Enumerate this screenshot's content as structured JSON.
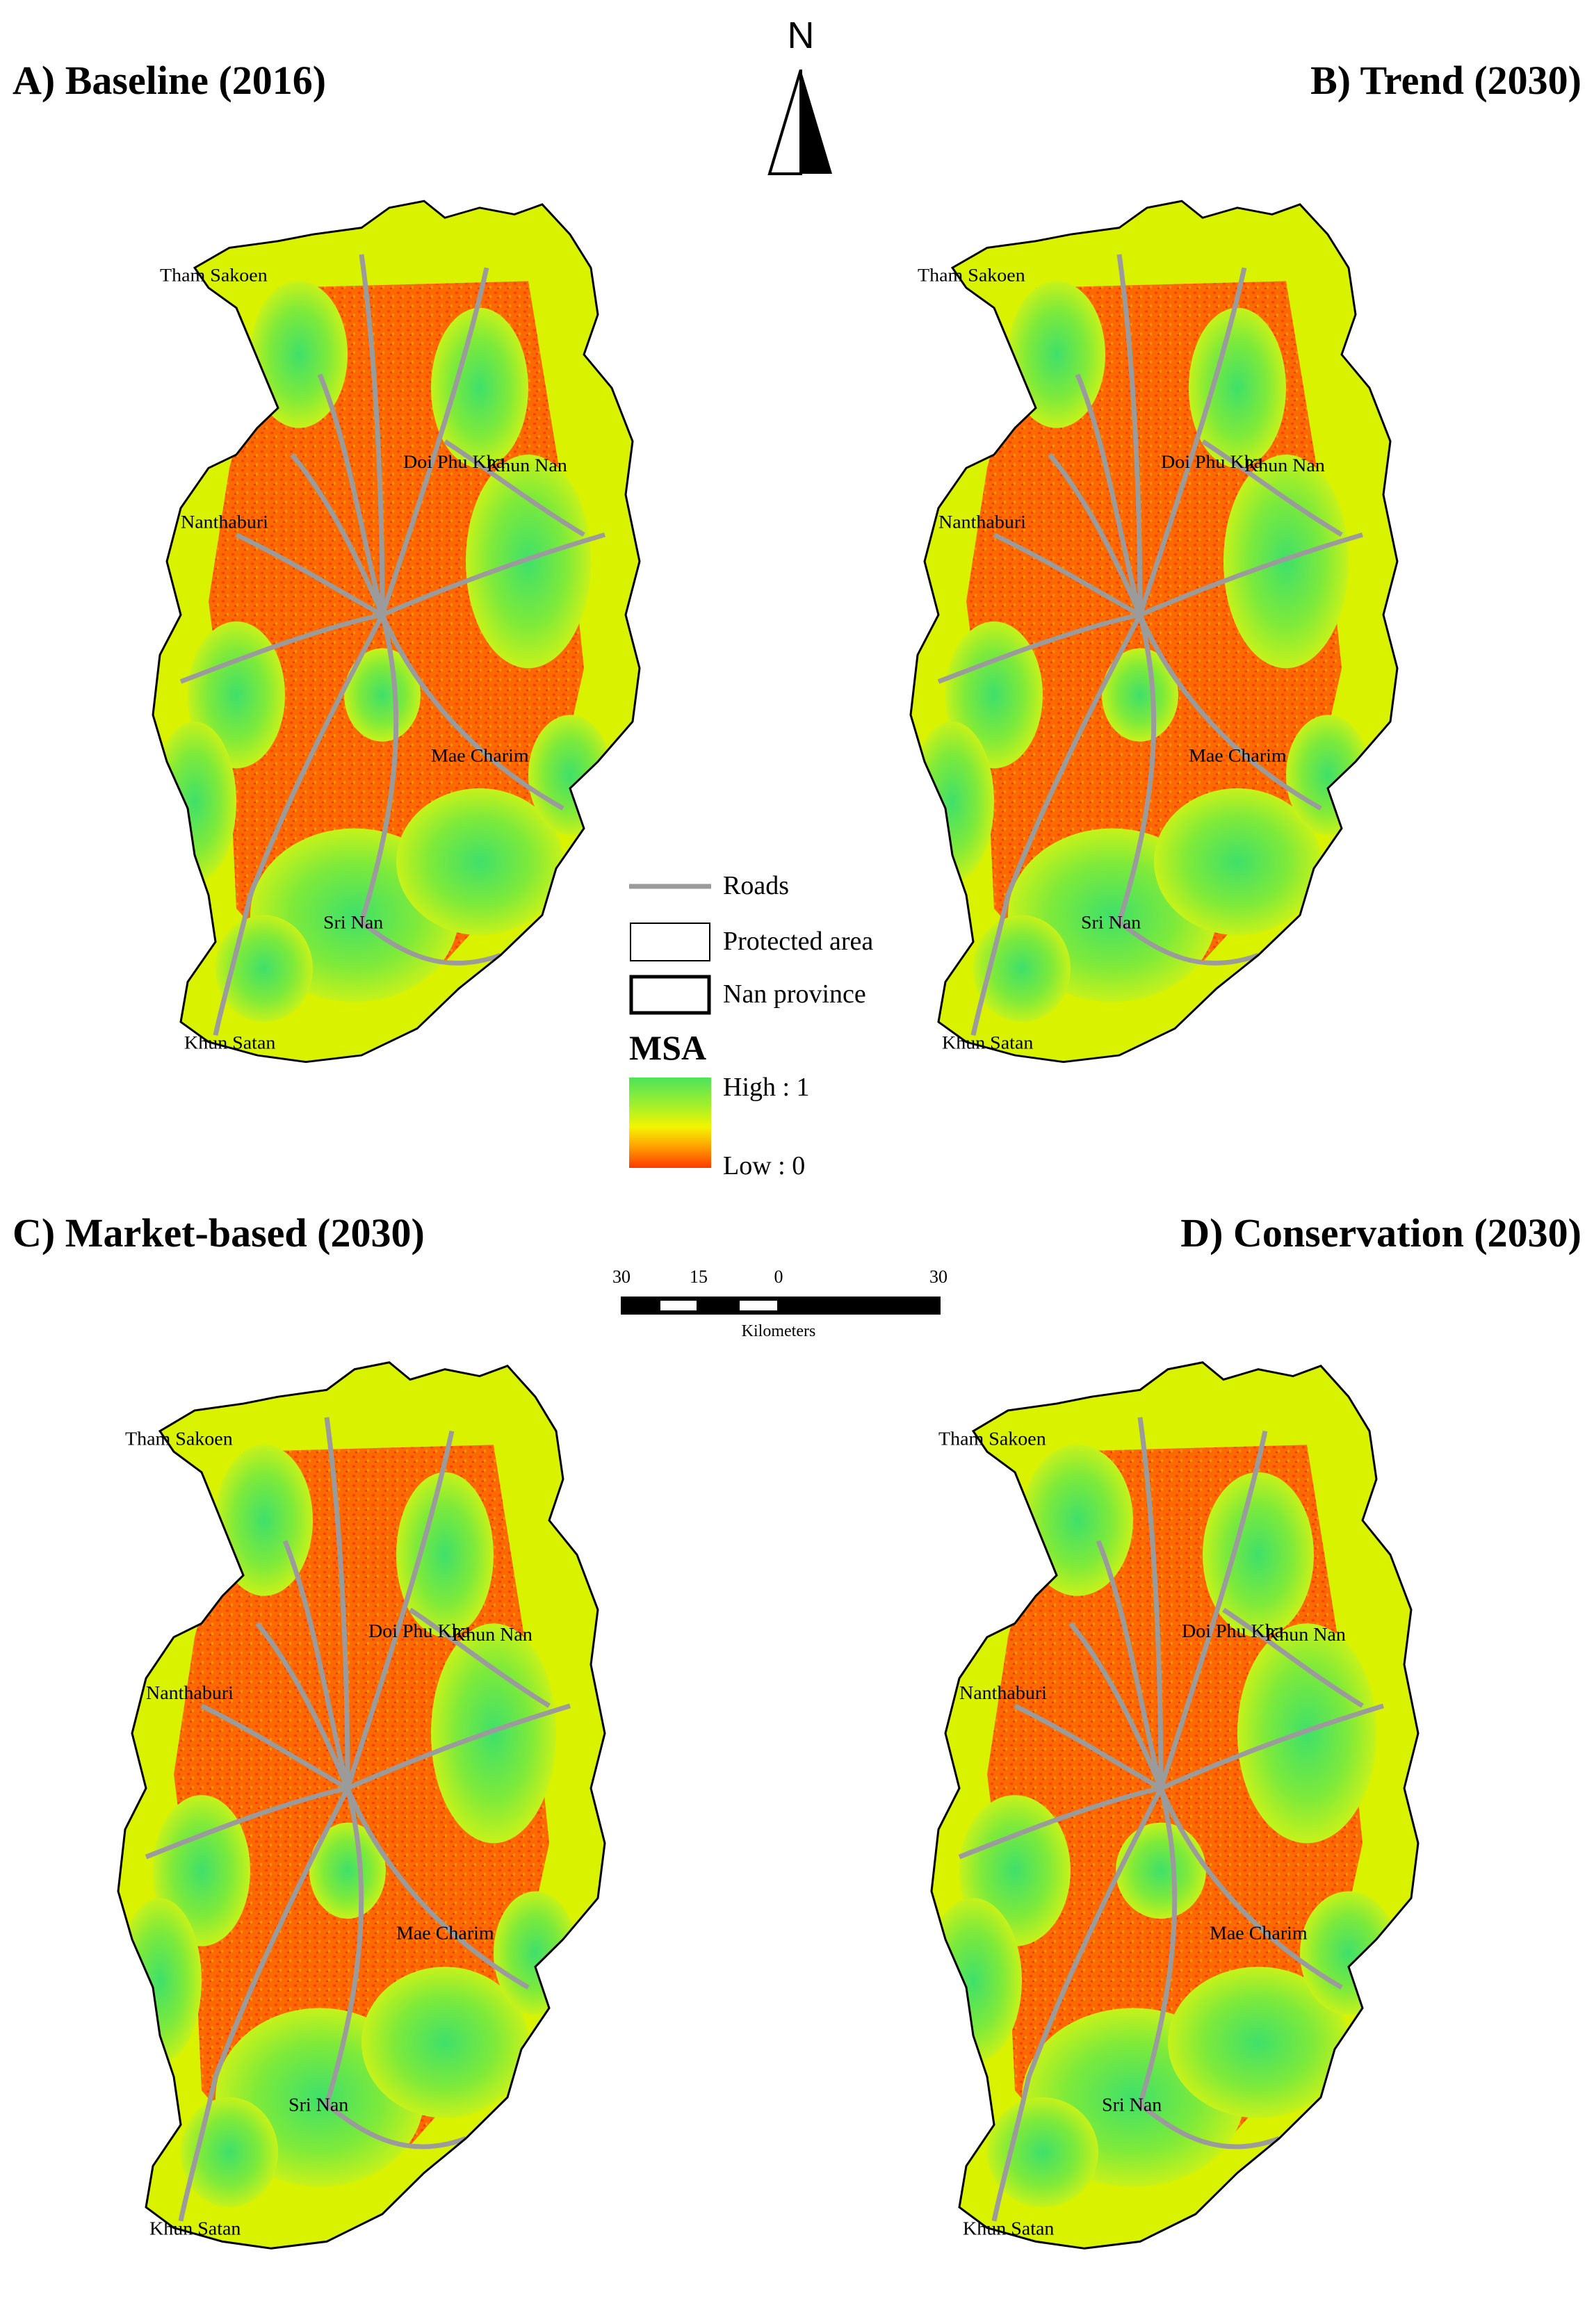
{
  "panels": [
    {
      "id": "a",
      "title": "A) Baseline (2016)"
    },
    {
      "id": "b",
      "title": "B) Trend (2030)"
    },
    {
      "id": "c",
      "title": "C) Market-based (2030)"
    },
    {
      "id": "d",
      "title": "D) Conservation (2030)"
    }
  ],
  "north_arrow": {
    "label": "N"
  },
  "place_names": [
    "Tham Sakoen",
    "Doi Phu Kha",
    "Khun Nan",
    "Nanthaburi",
    "Mae Charim",
    "Sri Nan",
    "Khun Satan"
  ],
  "legend": {
    "roads": "Roads",
    "protected_area": "Protected area",
    "province": "Nan province",
    "msa_title": "MSA",
    "high_label": "High : 1",
    "low_label": "Low : 0"
  },
  "scale_bar": {
    "ticks": [
      "30",
      "15",
      "0",
      "30"
    ],
    "unit": "Kilometers"
  },
  "colors": {
    "high": "#4de35a",
    "mid": "#f4f400",
    "low": "#ff3a00",
    "roads": "#9b9b9b",
    "boundary": "#000000"
  }
}
